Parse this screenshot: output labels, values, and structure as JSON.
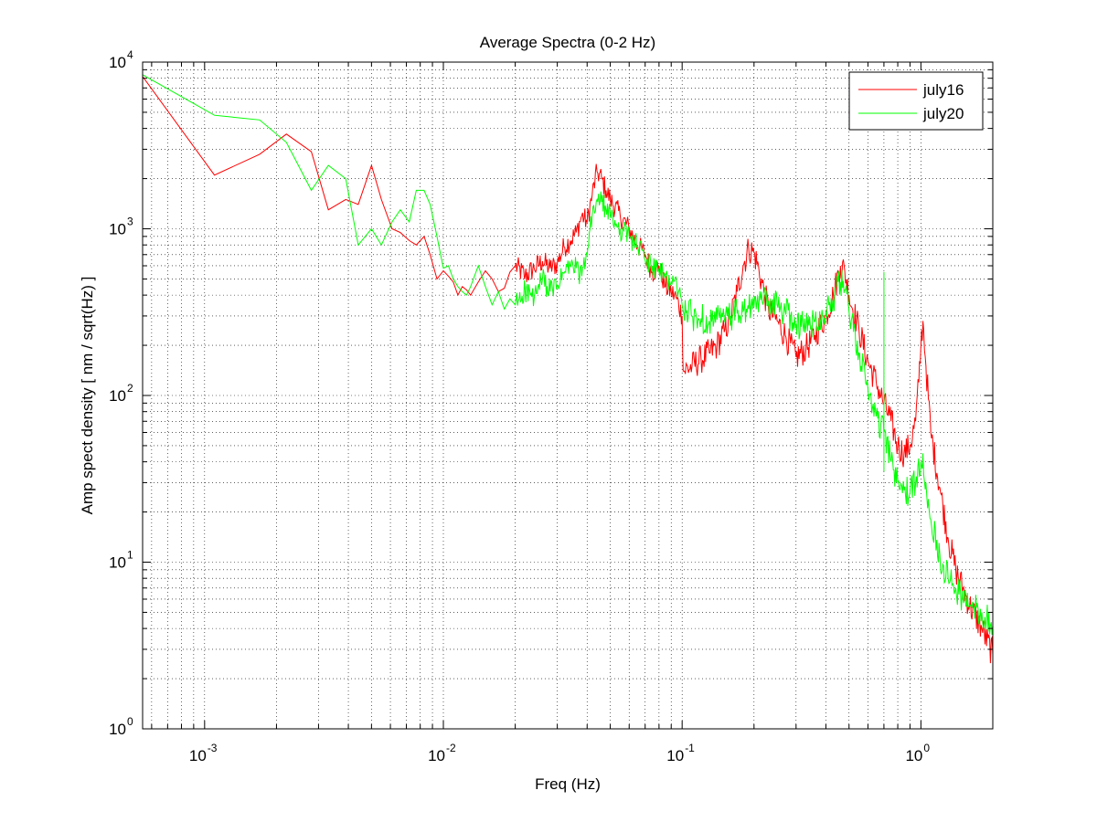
{
  "chart_data": {
    "type": "line",
    "title": "Average Spectra (0-2 Hz)",
    "xlabel": "Freq (Hz)",
    "ylabel": "Amp spect density [ nm / sqrt(Hz) ]",
    "x_scale": "log",
    "y_scale": "log",
    "xlim": [
      0.00055,
      2
    ],
    "ylim": [
      1,
      10000
    ],
    "grid": true,
    "legend_position": "top-right",
    "x_ticks": [
      {
        "value": 0.001,
        "base": "10",
        "exp": "-3"
      },
      {
        "value": 0.01,
        "base": "10",
        "exp": "-2"
      },
      {
        "value": 0.1,
        "base": "10",
        "exp": "-1"
      },
      {
        "value": 1,
        "base": "10",
        "exp": "0"
      }
    ],
    "y_ticks": [
      {
        "value": 1,
        "base": "10",
        "exp": "0"
      },
      {
        "value": 10,
        "base": "10",
        "exp": "1"
      },
      {
        "value": 100,
        "base": "10",
        "exp": "2"
      },
      {
        "value": 1000,
        "base": "10",
        "exp": "3"
      },
      {
        "value": 10000,
        "base": "10",
        "exp": "4"
      }
    ],
    "series": [
      {
        "name": "july16",
        "color": "#ff0000",
        "points": [
          [
            0.00055,
            8200
          ],
          [
            0.0011,
            2100
          ],
          [
            0.0017,
            2800
          ],
          [
            0.0022,
            3700
          ],
          [
            0.0028,
            2900
          ],
          [
            0.0033,
            1300
          ],
          [
            0.0039,
            1500
          ],
          [
            0.0044,
            1400
          ],
          [
            0.005,
            2400
          ],
          [
            0.0055,
            1500
          ],
          [
            0.0061,
            1000
          ],
          [
            0.0066,
            950
          ],
          [
            0.0072,
            850
          ],
          [
            0.0077,
            800
          ],
          [
            0.0083,
            900
          ],
          [
            0.0088,
            700
          ],
          [
            0.0094,
            500
          ],
          [
            0.01,
            560
          ],
          [
            0.0105,
            520
          ],
          [
            0.011,
            480
          ],
          [
            0.0115,
            400
          ],
          [
            0.012,
            450
          ],
          [
            0.0125,
            430
          ],
          [
            0.013,
            400
          ],
          [
            0.014,
            480
          ],
          [
            0.015,
            560
          ],
          [
            0.016,
            500
          ],
          [
            0.017,
            420
          ],
          [
            0.018,
            440
          ],
          [
            0.019,
            550
          ],
          [
            0.02,
            600
          ],
          [
            0.022,
            520
          ],
          [
            0.024,
            580
          ],
          [
            0.026,
            640
          ],
          [
            0.028,
            580
          ],
          [
            0.03,
            620
          ],
          [
            0.032,
            780
          ],
          [
            0.034,
            850
          ],
          [
            0.036,
            950
          ],
          [
            0.038,
            1200
          ],
          [
            0.04,
            1100
          ],
          [
            0.042,
            1600
          ],
          [
            0.044,
            2200
          ],
          [
            0.046,
            2000
          ],
          [
            0.048,
            1700
          ],
          [
            0.05,
            1500
          ],
          [
            0.055,
            1200
          ],
          [
            0.06,
            1000
          ],
          [
            0.065,
            800
          ],
          [
            0.07,
            700
          ],
          [
            0.075,
            550
          ],
          [
            0.08,
            600
          ],
          [
            0.085,
            450
          ],
          [
            0.09,
            420
          ],
          [
            0.095,
            380
          ],
          [
            0.1,
            300
          ],
          [
            0.101,
            140
          ],
          [
            0.11,
            150
          ],
          [
            0.12,
            165
          ],
          [
            0.13,
            180
          ],
          [
            0.14,
            200
          ],
          [
            0.15,
            240
          ],
          [
            0.16,
            300
          ],
          [
            0.17,
            420
          ],
          [
            0.18,
            600
          ],
          [
            0.19,
            760
          ],
          [
            0.2,
            720
          ],
          [
            0.21,
            560
          ],
          [
            0.22,
            420
          ],
          [
            0.23,
            330
          ],
          [
            0.25,
            280
          ],
          [
            0.27,
            230
          ],
          [
            0.3,
            170
          ],
          [
            0.33,
            190
          ],
          [
            0.36,
            230
          ],
          [
            0.4,
            300
          ],
          [
            0.43,
            400
          ],
          [
            0.46,
            600
          ],
          [
            0.48,
            560
          ],
          [
            0.5,
            400
          ],
          [
            0.55,
            250
          ],
          [
            0.6,
            160
          ],
          [
            0.65,
            120
          ],
          [
            0.7,
            90
          ],
          [
            0.75,
            70
          ],
          [
            0.8,
            50
          ],
          [
            0.85,
            45
          ],
          [
            0.9,
            50
          ],
          [
            0.95,
            70
          ],
          [
            0.98,
            120
          ],
          [
            1.0,
            200
          ],
          [
            1.02,
            280
          ],
          [
            1.05,
            150
          ],
          [
            1.1,
            60
          ],
          [
            1.2,
            28
          ],
          [
            1.3,
            14
          ],
          [
            1.4,
            9
          ],
          [
            1.5,
            7
          ],
          [
            1.6,
            5.5
          ],
          [
            1.8,
            4
          ],
          [
            2.0,
            2.8
          ]
        ]
      },
      {
        "name": "july20",
        "color": "#00ff00",
        "points": [
          [
            0.00055,
            8400
          ],
          [
            0.0011,
            4800
          ],
          [
            0.0017,
            4500
          ],
          [
            0.0022,
            3300
          ],
          [
            0.0028,
            1700
          ],
          [
            0.0033,
            2400
          ],
          [
            0.0039,
            2000
          ],
          [
            0.0044,
            800
          ],
          [
            0.005,
            1000
          ],
          [
            0.0055,
            800
          ],
          [
            0.0061,
            1100
          ],
          [
            0.0066,
            1300
          ],
          [
            0.0072,
            1100
          ],
          [
            0.0077,
            1700
          ],
          [
            0.0083,
            1700
          ],
          [
            0.0088,
            1400
          ],
          [
            0.0094,
            900
          ],
          [
            0.01,
            580
          ],
          [
            0.0105,
            600
          ],
          [
            0.011,
            500
          ],
          [
            0.0115,
            450
          ],
          [
            0.012,
            420
          ],
          [
            0.0125,
            400
          ],
          [
            0.013,
            450
          ],
          [
            0.014,
            600
          ],
          [
            0.015,
            450
          ],
          [
            0.016,
            350
          ],
          [
            0.017,
            420
          ],
          [
            0.018,
            330
          ],
          [
            0.019,
            380
          ],
          [
            0.02,
            350
          ],
          [
            0.022,
            430
          ],
          [
            0.024,
            380
          ],
          [
            0.026,
            500
          ],
          [
            0.028,
            420
          ],
          [
            0.03,
            460
          ],
          [
            0.032,
            540
          ],
          [
            0.034,
            600
          ],
          [
            0.036,
            580
          ],
          [
            0.038,
            520
          ],
          [
            0.04,
            700
          ],
          [
            0.042,
            1200
          ],
          [
            0.044,
            1500
          ],
          [
            0.046,
            1450
          ],
          [
            0.048,
            1300
          ],
          [
            0.05,
            1200
          ],
          [
            0.055,
            1000
          ],
          [
            0.06,
            900
          ],
          [
            0.065,
            800
          ],
          [
            0.07,
            650
          ],
          [
            0.075,
            600
          ],
          [
            0.08,
            550
          ],
          [
            0.085,
            520
          ],
          [
            0.09,
            480
          ],
          [
            0.095,
            460
          ],
          [
            0.1,
            350
          ],
          [
            0.11,
            300
          ],
          [
            0.12,
            290
          ],
          [
            0.13,
            280
          ],
          [
            0.14,
            285
          ],
          [
            0.15,
            290
          ],
          [
            0.16,
            300
          ],
          [
            0.17,
            310
          ],
          [
            0.18,
            320
          ],
          [
            0.19,
            330
          ],
          [
            0.2,
            340
          ],
          [
            0.21,
            360
          ],
          [
            0.22,
            380
          ],
          [
            0.23,
            370
          ],
          [
            0.25,
            350
          ],
          [
            0.27,
            320
          ],
          [
            0.3,
            270
          ],
          [
            0.33,
            260
          ],
          [
            0.36,
            280
          ],
          [
            0.4,
            320
          ],
          [
            0.43,
            380
          ],
          [
            0.46,
            480
          ],
          [
            0.48,
            430
          ],
          [
            0.5,
            320
          ],
          [
            0.55,
            180
          ],
          [
            0.6,
            110
          ],
          [
            0.65,
            75
          ],
          [
            0.7,
            60
          ],
          [
            0.75,
            40
          ],
          [
            0.8,
            30
          ],
          [
            0.85,
            27
          ],
          [
            0.9,
            26
          ],
          [
            0.95,
            30
          ],
          [
            1.0,
            40
          ],
          [
            1.02,
            45
          ],
          [
            1.05,
            30
          ],
          [
            1.1,
            18
          ],
          [
            1.2,
            11
          ],
          [
            1.3,
            8
          ],
          [
            1.4,
            7
          ],
          [
            1.5,
            6
          ],
          [
            1.6,
            5.5
          ],
          [
            1.8,
            5
          ],
          [
            2.0,
            4.2
          ]
        ]
      }
    ]
  }
}
